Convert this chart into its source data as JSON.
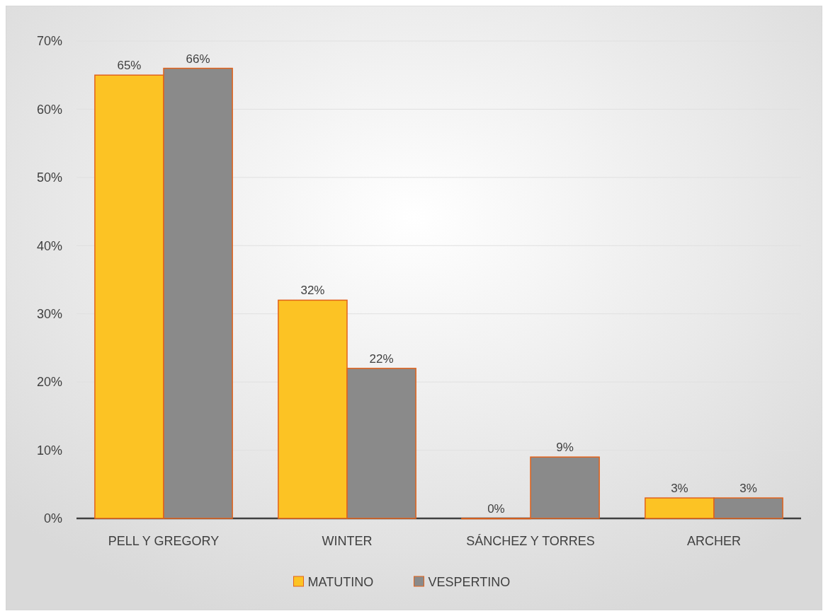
{
  "chart_data": {
    "type": "bar",
    "categories": [
      "PELL Y GREGORY",
      "WINTER",
      "SÁNCHEZ Y TORRES",
      "ARCHER"
    ],
    "series": [
      {
        "name": "MATUTINO",
        "color": "#fcc324",
        "values": [
          65,
          32,
          0,
          3
        ],
        "value_labels": [
          "65%",
          "32%",
          "0%",
          "3%"
        ]
      },
      {
        "name": "VESPERTINO",
        "color": "#8a8a8a",
        "values": [
          66,
          22,
          9,
          3
        ],
        "value_labels": [
          "66%",
          "22%",
          "9%",
          "3%"
        ]
      }
    ],
    "ylim": [
      0,
      70
    ],
    "yticks": [
      {
        "value": 0,
        "label": "0%"
      },
      {
        "value": 10,
        "label": "10%"
      },
      {
        "value": 20,
        "label": "20%"
      },
      {
        "value": 30,
        "label": "30%"
      },
      {
        "value": 40,
        "label": "40%"
      },
      {
        "value": 50,
        "label": "50%"
      },
      {
        "value": 60,
        "label": "60%"
      },
      {
        "value": 70,
        "label": "70%"
      }
    ],
    "grid": "y",
    "legend": "bottom"
  }
}
